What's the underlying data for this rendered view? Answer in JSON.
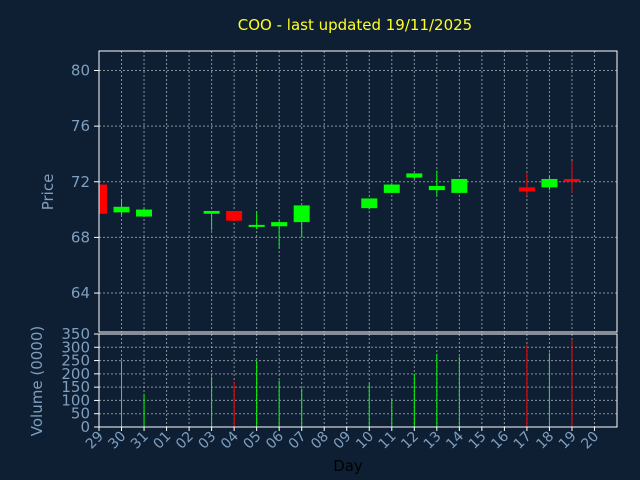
{
  "chart_data": {
    "type": "candlestick",
    "title": "COO - last updated 19/11/2025",
    "xlabel": "Day",
    "x_tick_labels": [
      "29",
      "30",
      "31",
      "01",
      "02",
      "03",
      "04",
      "05",
      "06",
      "07",
      "08",
      "09",
      "10",
      "11",
      "12",
      "13",
      "14",
      "15",
      "16",
      "17",
      "18",
      "19",
      "20"
    ],
    "price_panel": {
      "ylabel": "Price",
      "ylim": [
        61.2,
        81.4
      ],
      "y_ticks": [
        64,
        68,
        72,
        76,
        80
      ],
      "candles": [
        {
          "day": "29",
          "open": 69.7,
          "high": 71.8,
          "low": 69.7,
          "close": 71.8,
          "color": "red"
        },
        {
          "day": "30",
          "open": 69.8,
          "high": 70.8,
          "low": 69.6,
          "close": 70.2,
          "color": "green"
        },
        {
          "day": "31",
          "open": 69.5,
          "high": 70.1,
          "low": 69.5,
          "close": 70.0,
          "color": "green"
        },
        {
          "day": "03",
          "open": 69.7,
          "high": 69.9,
          "low": 68.5,
          "close": 69.9,
          "color": "green"
        },
        {
          "day": "04",
          "open": 69.9,
          "high": 69.9,
          "low": 69.2,
          "close": 69.2,
          "color": "red"
        },
        {
          "day": "05",
          "open": 68.8,
          "high": 69.9,
          "low": 68.6,
          "close": 68.9,
          "color": "green"
        },
        {
          "day": "06",
          "open": 68.8,
          "high": 69.2,
          "low": 67.2,
          "close": 69.1,
          "color": "green"
        },
        {
          "day": "07",
          "open": 69.1,
          "high": 70.3,
          "low": 68.0,
          "close": 70.3,
          "color": "green"
        },
        {
          "day": "10",
          "open": 70.1,
          "high": 70.8,
          "low": 70.0,
          "close": 70.8,
          "color": "green"
        },
        {
          "day": "11",
          "open": 71.2,
          "high": 71.8,
          "low": 71.2,
          "close": 71.8,
          "color": "green"
        },
        {
          "day": "12",
          "open": 72.3,
          "high": 72.6,
          "low": 72.2,
          "close": 72.6,
          "color": "green"
        },
        {
          "day": "13",
          "open": 71.4,
          "high": 72.8,
          "low": 71.0,
          "close": 71.7,
          "color": "green"
        },
        {
          "day": "14",
          "open": 71.2,
          "high": 72.2,
          "low": 71.2,
          "close": 72.2,
          "color": "green"
        },
        {
          "day": "17",
          "open": 71.6,
          "high": 72.6,
          "low": 71.0,
          "close": 71.3,
          "color": "red"
        },
        {
          "day": "18",
          "open": 71.6,
          "high": 72.4,
          "low": 71.4,
          "close": 72.2,
          "color": "green"
        },
        {
          "day": "19",
          "open": 72.2,
          "high": 73.5,
          "low": 71.2,
          "close": 72.0,
          "color": "red"
        }
      ]
    },
    "volume_panel": {
      "ylabel": "Volume (0000)",
      "ylim": [
        0,
        350
      ],
      "y_ticks": [
        0,
        50,
        100,
        150,
        200,
        250,
        300,
        350
      ],
      "bars": [
        {
          "day": "30",
          "value": 250,
          "color": "green"
        },
        {
          "day": "31",
          "value": 125,
          "color": "green"
        },
        {
          "day": "03",
          "value": 190,
          "color": "green"
        },
        {
          "day": "04",
          "value": 170,
          "color": "red"
        },
        {
          "day": "05",
          "value": 250,
          "color": "green"
        },
        {
          "day": "06",
          "value": 175,
          "color": "green"
        },
        {
          "day": "07",
          "value": 145,
          "color": "green"
        },
        {
          "day": "10",
          "value": 165,
          "color": "green"
        },
        {
          "day": "11",
          "value": 105,
          "color": "green"
        },
        {
          "day": "12",
          "value": 200,
          "color": "green"
        },
        {
          "day": "13",
          "value": 275,
          "color": "green"
        },
        {
          "day": "14",
          "value": 265,
          "color": "green"
        },
        {
          "day": "17",
          "value": 310,
          "color": "red"
        },
        {
          "day": "18",
          "value": 280,
          "color": "green"
        },
        {
          "day": "19",
          "value": 330,
          "color": "red"
        }
      ]
    },
    "grid": true,
    "colors": {
      "background": "#0e1f33",
      "up": "#00ff00",
      "down": "#ff0000",
      "title": "#ffff22",
      "axis_text": "#7f9fbf",
      "grid": "#b0b8c0"
    }
  }
}
